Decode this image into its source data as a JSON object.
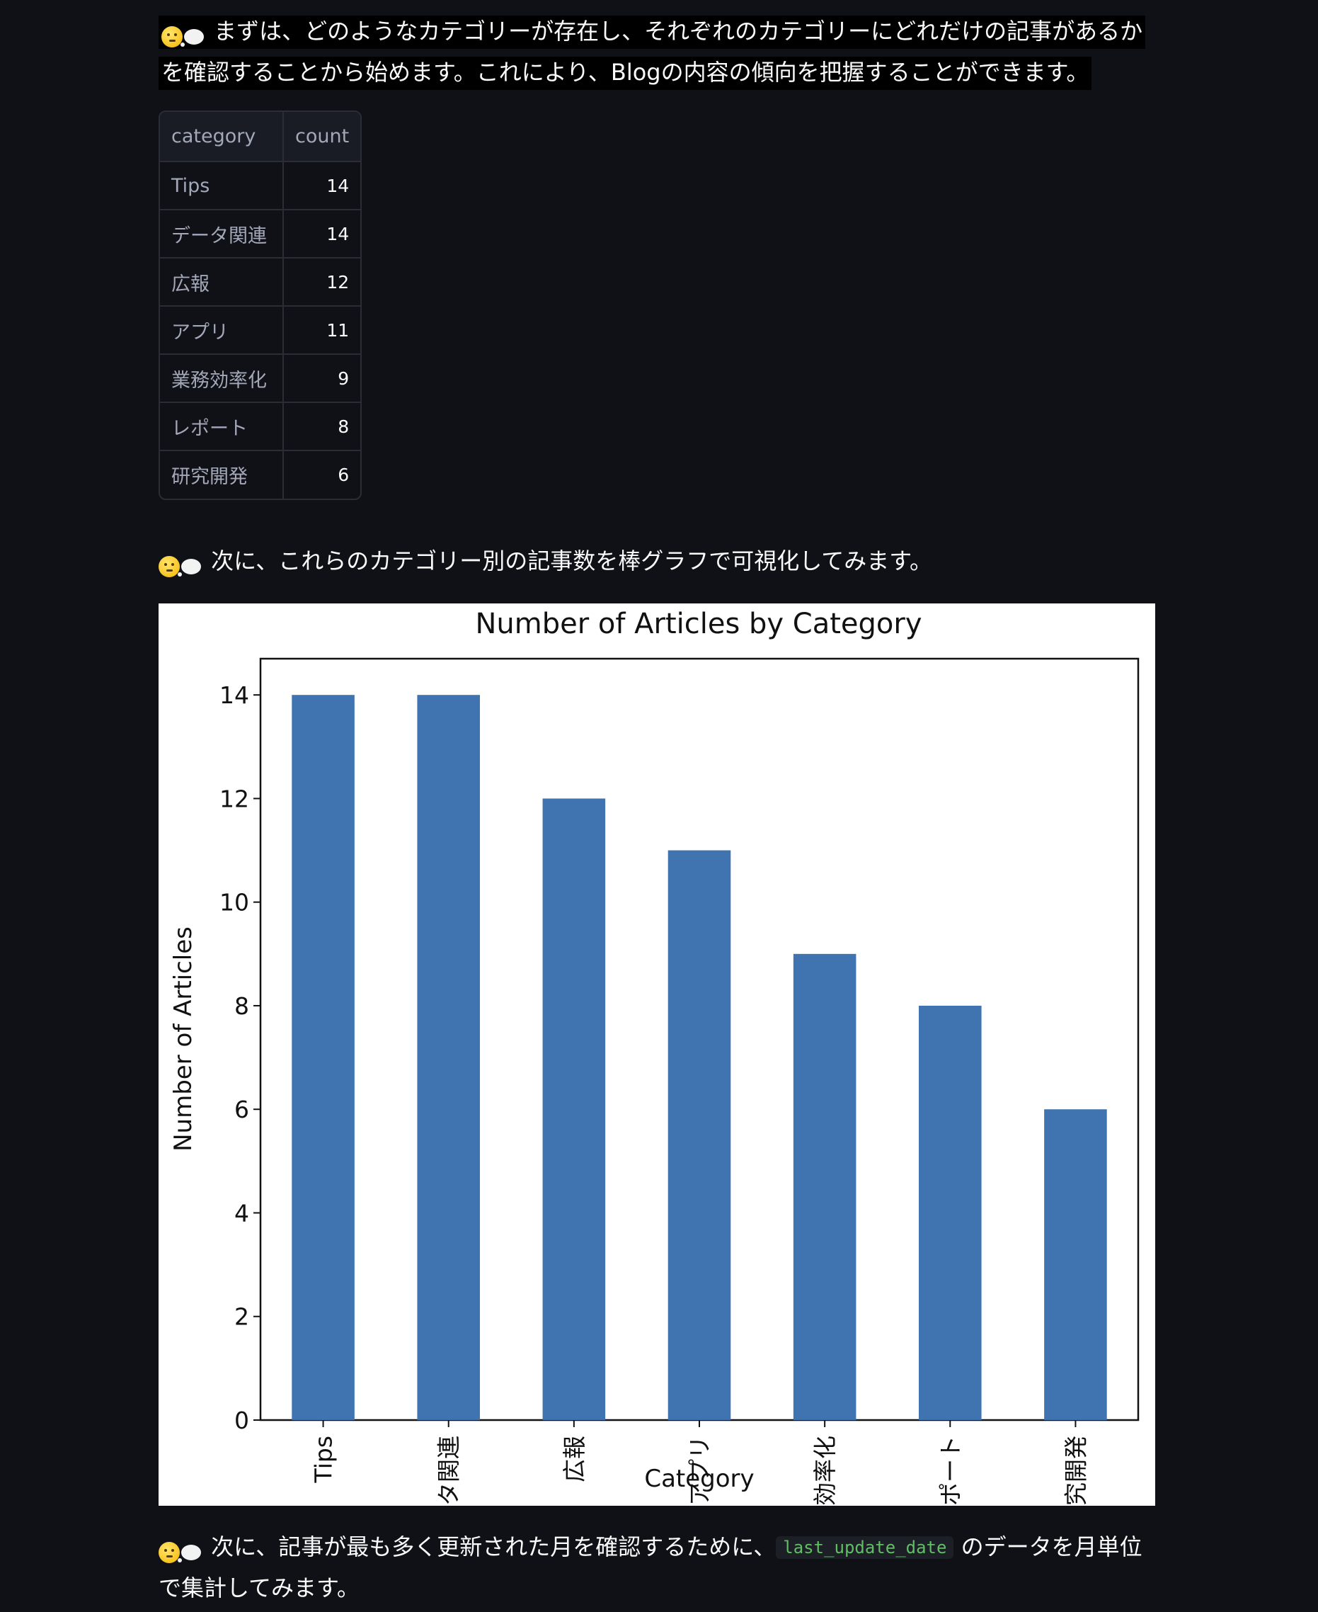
{
  "messages": {
    "intro_line1": "まずは、どのようなカテゴリーが存在し、それぞれのカテゴリーにどれだけの記事があるか",
    "intro_line2": "を確認することから始めます。これにより、Blogの内容の傾向を把握することができます。",
    "chart_intro": "次に、これらのカテゴリー別の記事数を棒グラフで可視化してみます。",
    "next_step_before": "次に、記事が最も多く更新された月を確認するために、",
    "next_step_code": "last_update_date",
    "next_step_after": "のデータを月単位",
    "next_step_line2": "で集計してみます。"
  },
  "icons": {
    "thinking": "thinking-face-icon",
    "thought_bubble": "thought-balloon-icon"
  },
  "table": {
    "columns": [
      "category",
      "count"
    ],
    "rows": [
      {
        "category": "Tips",
        "count": "14"
      },
      {
        "category": "データ関連",
        "count": "14"
      },
      {
        "category": "広報",
        "count": "12"
      },
      {
        "category": "アプリ",
        "count": "11"
      },
      {
        "category": "業務効率化",
        "count": "9"
      },
      {
        "category": "レポート",
        "count": "8"
      },
      {
        "category": "研究開発",
        "count": "6"
      }
    ]
  },
  "colors": {
    "background": "#0f1117",
    "bar": "#3f74b1",
    "code_text": "#5fbf62"
  },
  "chart_data": {
    "type": "bar",
    "title": "Number of Articles by Category",
    "xlabel": "Category",
    "ylabel": "Number of Articles",
    "categories": [
      "Tips",
      "データ関連",
      "広報",
      "アプリ",
      "業務効率化",
      "レポート",
      "研究開発"
    ],
    "values": [
      14,
      14,
      12,
      11,
      9,
      8,
      6
    ],
    "ylim": [
      0,
      14.7
    ],
    "yticks": [
      0,
      2,
      4,
      6,
      8,
      10,
      12,
      14
    ],
    "grid": false,
    "legend": "none"
  }
}
